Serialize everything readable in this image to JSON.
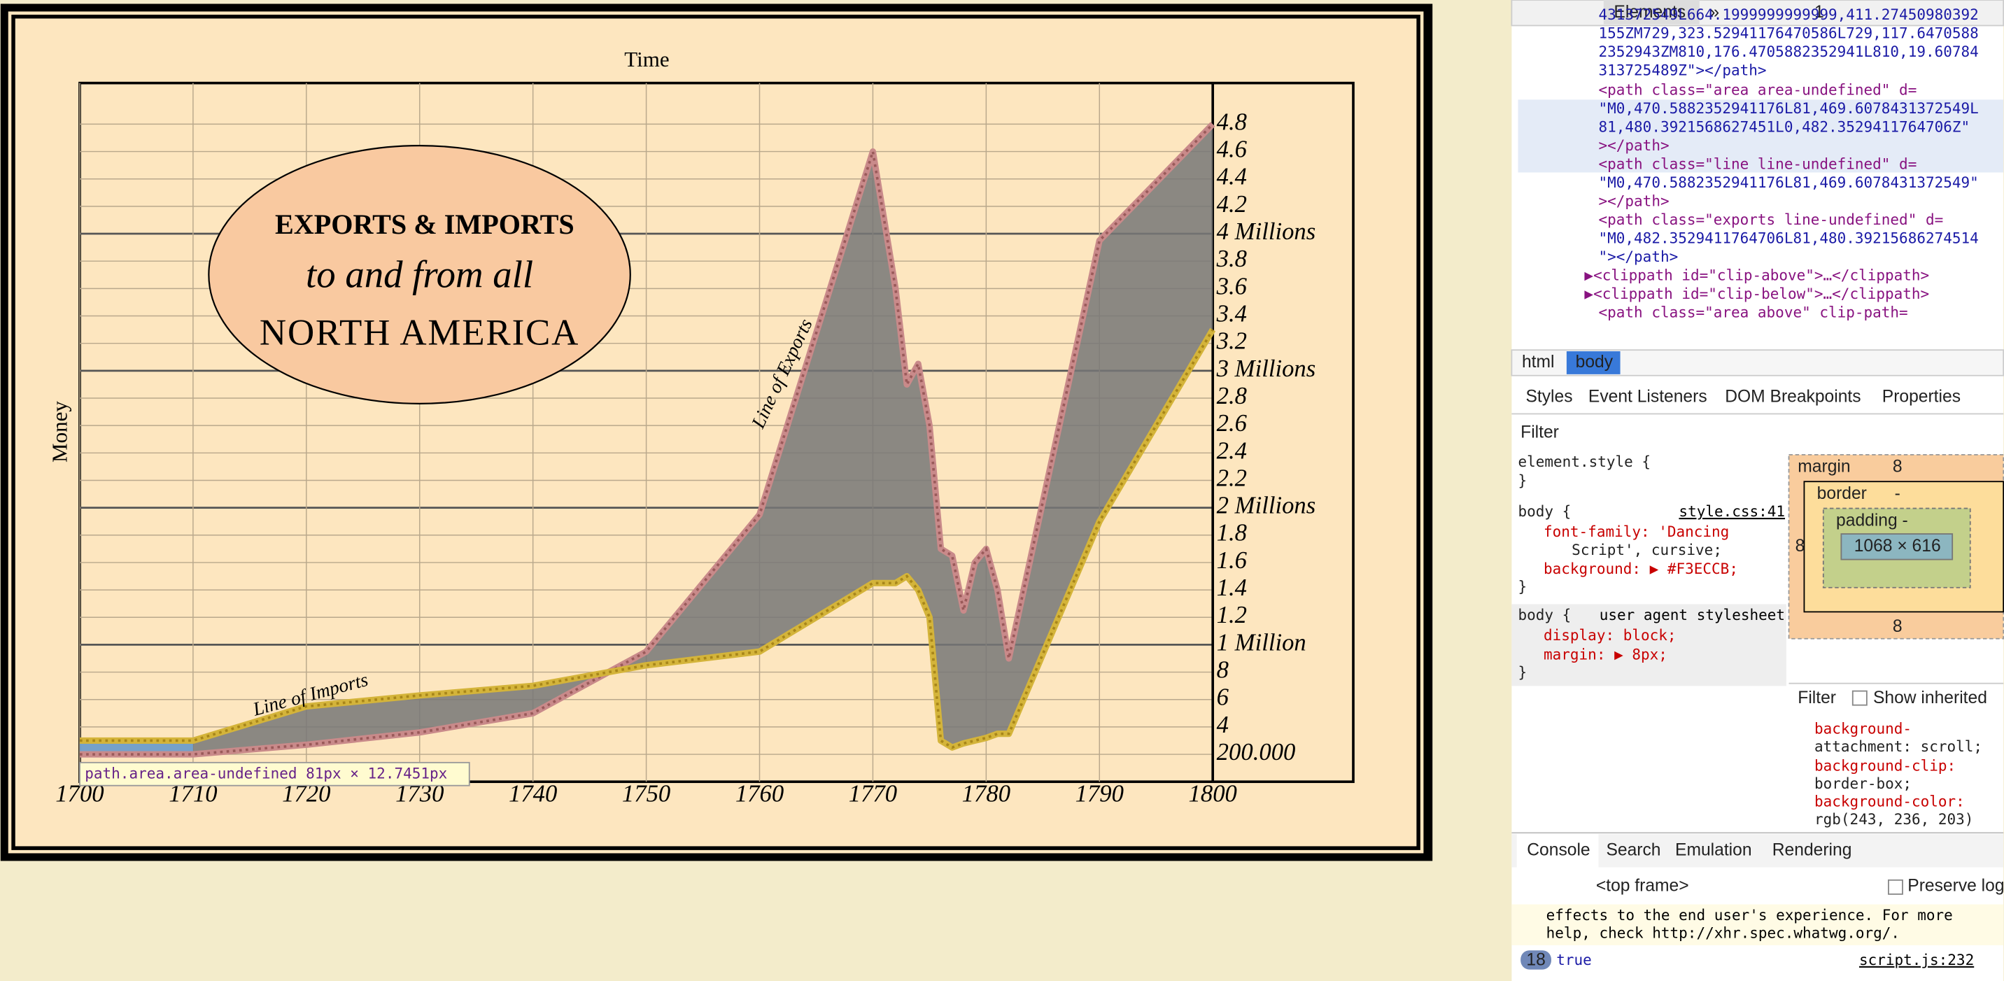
{
  "chart_data": {
    "type": "area",
    "title": [
      "EXPORTS & IMPORTS",
      "to and from all",
      "NORTH AMERICA"
    ],
    "x_label": "Time",
    "y_label": "Money",
    "annotations": [
      "Line of Imports",
      "Line of Exports"
    ],
    "x": [
      1700,
      1710,
      1720,
      1730,
      1740,
      1750,
      1760,
      1770,
      1772,
      1773,
      1774,
      1775,
      1776,
      1777,
      1778,
      1779,
      1780,
      1781,
      1782,
      1790,
      1800
    ],
    "series": [
      {
        "name": "exports",
        "color": "#c98a8a",
        "values": [
          0.2,
          0.2,
          0.27,
          0.36,
          0.5,
          0.95,
          1.95,
          4.6,
          3.6,
          2.9,
          3.05,
          2.6,
          1.7,
          1.65,
          1.25,
          1.6,
          1.7,
          1.4,
          0.9,
          3.95,
          4.8
        ]
      },
      {
        "name": "imports",
        "color": "#d4b43a",
        "values": [
          0.3,
          0.3,
          0.55,
          0.63,
          0.7,
          0.85,
          0.95,
          1.45,
          1.45,
          1.5,
          1.4,
          1.2,
          0.3,
          0.25,
          0.28,
          0.3,
          0.32,
          0.35,
          0.35,
          1.9,
          3.3
        ]
      }
    ],
    "area_color": "#777777",
    "xlim": [
      1700,
      1800
    ],
    "xticks": [
      1700,
      1710,
      1720,
      1730,
      1740,
      1750,
      1760,
      1770,
      1780,
      1790,
      1800
    ],
    "ylim": [
      0,
      5.1
    ],
    "yticks": [
      {
        "value": 0.2,
        "label": "200.000"
      },
      {
        "value": 0.4,
        "label": "4"
      },
      {
        "value": 0.6,
        "label": "6"
      },
      {
        "value": 0.8,
        "label": "8"
      },
      {
        "value": 1,
        "label": "1 Million"
      },
      1.2,
      1.4,
      1.6,
      1.8,
      {
        "value": 2,
        "label": "2 Millions"
      },
      2.2,
      2.4,
      2.6,
      2.8,
      {
        "value": 3,
        "label": "3 Millions"
      },
      3.2,
      3.4,
      3.6,
      3.8,
      {
        "value": 4,
        "label": "4 Millions"
      },
      4.2,
      4.4,
      4.6,
      4.8
    ],
    "grid": true
  },
  "inspector_tooltip": "path.area.area-undefined 81px × 12.7451px",
  "devtools": {
    "toolbar": {
      "tab": "Elements",
      "more": "»",
      "warnings": "1"
    },
    "elements": [
      "431372549L664.1999999999999,411.27450980392",
      "155ZM729,323.52941176470586L729,117.6470588",
      "2352943ZM810,176.4705882352941L810,19.60784",
      "313725489Z\"></path>",
      "<path class=\"area area-undefined\" d=",
      "\"M0,470.5882352941176L81,469.6078431372549L",
      "81,480.3921568627451L0,482.3529411764706Z\"",
      "></path>",
      "<path class=\"line line-undefined\" d=",
      "\"M0,470.5882352941176L81,469.6078431372549\"",
      "></path>",
      "<path class=\"exports line-undefined\" d=",
      "\"M0,482.3529411764706L81,480.39215686274514",
      "\"></path>",
      "▶<clippath id=\"clip-above\">…</clippath>",
      "▶<clippath id=\"clip-below\">…</clippath>",
      "<path class=\"area above\" clip-path="
    ],
    "breadcrumbs": [
      "html",
      "body"
    ],
    "side_tabs": [
      "Styles",
      "Event Listeners",
      "DOM Breakpoints",
      "Properties"
    ],
    "filter": "Filter",
    "styles": [
      "element.style {",
      "}",
      "body {",
      "font-family: 'Dancing",
      "Script', cursive;",
      "background: ▶ #F3ECCB;",
      "}",
      "body {",
      "display: block;",
      "margin: ▶ 8px;",
      "}"
    ],
    "style_sources": [
      "style.css:41",
      "user agent stylesheet"
    ],
    "box_model": {
      "margin": "margin",
      "margin_value": "8",
      "border": "border",
      "border_value": "-",
      "padding": "padding -",
      "content": "1068 × 616",
      "side": "8",
      "bottom": "8"
    },
    "computed_filter": "Filter",
    "show_inherited": "Show inherited",
    "computed": [
      "background-",
      "attachment: scroll;",
      "background-clip:",
      "border-box;",
      "background-color:",
      "rgb(243, 236, 203)"
    ],
    "console_tabs": [
      "Console",
      "Search",
      "Emulation",
      "Rendering"
    ],
    "frame": "<top frame>",
    "preserve_log": "Preserve log",
    "console_lines": [
      "effects to the end user's experience. For more",
      "help, check http://xhr.spec.whatwg.org/."
    ],
    "result_count": "18",
    "result": "true",
    "result_source": "script.js:232"
  }
}
